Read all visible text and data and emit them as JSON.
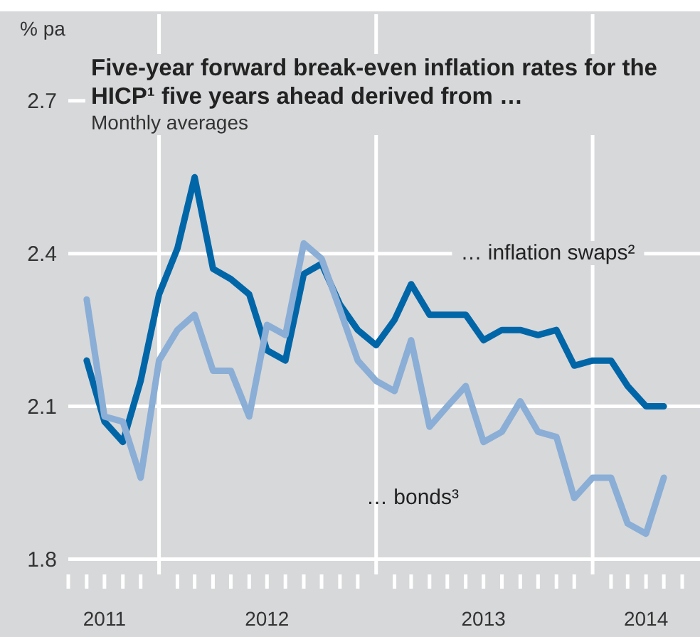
{
  "chart_data": {
    "type": "line",
    "title": "Five-year forward break-even inflation rates for the HICP¹ five years ahead derived from …",
    "subtitle": "Monthly averages",
    "ylabel": "% pa",
    "x": [
      "2011-09",
      "2011-10",
      "2011-11",
      "2011-12",
      "2012-01",
      "2012-02",
      "2012-03",
      "2012-04",
      "2012-05",
      "2012-06",
      "2012-07",
      "2012-08",
      "2012-09",
      "2012-10",
      "2012-11",
      "2012-12",
      "2013-01",
      "2013-02",
      "2013-03",
      "2013-04",
      "2013-05",
      "2013-06",
      "2013-07",
      "2013-08",
      "2013-09",
      "2013-10",
      "2013-11",
      "2013-12",
      "2014-01",
      "2014-02",
      "2014-03",
      "2014-04",
      "2014-05"
    ],
    "series": [
      {
        "color": "#0066a8",
        "values": [
          2.19,
          2.07,
          2.03,
          2.15,
          2.32,
          2.41,
          2.55,
          2.37,
          2.35,
          2.32,
          2.21,
          2.19,
          2.36,
          2.38,
          2.3,
          2.25,
          2.22,
          2.27,
          2.34,
          2.28,
          2.28,
          2.28,
          2.23,
          2.25,
          2.25,
          2.24,
          2.25,
          2.18,
          2.19,
          2.19,
          2.14,
          2.1,
          2.1
        ]
      },
      {
        "color": "#8aaed6",
        "values": [
          2.31,
          2.08,
          2.07,
          1.96,
          2.19,
          2.25,
          2.28,
          2.17,
          2.17,
          2.08,
          2.26,
          2.24,
          2.42,
          2.39,
          2.29,
          2.19,
          2.15,
          2.13,
          2.23,
          2.06,
          2.1,
          2.14,
          2.03,
          2.05,
          2.11,
          2.05,
          2.04,
          1.92,
          1.96,
          1.96,
          1.87,
          1.85,
          1.96
        ]
      }
    ],
    "ylim": [
      1.77,
      2.87
    ],
    "yticks": [
      1.8,
      2.1,
      2.4,
      2.7
    ],
    "xlim": [
      "2011-08",
      "2014-07"
    ],
    "xticks": [
      {
        "value": "2011-08",
        "label": null
      },
      {
        "value": "2011-09",
        "label": null
      },
      {
        "value": "2011-10",
        "label": "2011"
      },
      {
        "value": "2011-11",
        "label": null
      },
      {
        "value": "2011-12",
        "label": null
      },
      {
        "value": "2012-02",
        "label": null
      },
      {
        "value": "2012-03",
        "label": null
      },
      {
        "value": "2012-04",
        "label": null
      },
      {
        "value": "2012-05",
        "label": null
      },
      {
        "value": "2012-06",
        "label": null
      },
      {
        "value": "2012-07",
        "label": "2012"
      },
      {
        "value": "2012-08",
        "label": null
      },
      {
        "value": "2012-09",
        "label": null
      },
      {
        "value": "2012-10",
        "label": null
      },
      {
        "value": "2012-11",
        "label": null
      },
      {
        "value": "2012-12",
        "label": null
      },
      {
        "value": "2013-02",
        "label": null
      },
      {
        "value": "2013-03",
        "label": null
      },
      {
        "value": "2013-04",
        "label": null
      },
      {
        "value": "2013-05",
        "label": null
      },
      {
        "value": "2013-06",
        "label": null
      },
      {
        "value": "2013-07",
        "label": "2013"
      },
      {
        "value": "2013-08",
        "label": null
      },
      {
        "value": "2013-09",
        "label": null
      },
      {
        "value": "2013-10",
        "label": null
      },
      {
        "value": "2013-11",
        "label": null
      },
      {
        "value": "2013-12",
        "label": null
      },
      {
        "value": "2014-02",
        "label": null
      },
      {
        "value": "2014-03",
        "label": null
      },
      {
        "value": "2014-04",
        "label": "2014"
      },
      {
        "value": "2014-05",
        "label": null
      },
      {
        "value": "2014-06",
        "label": null
      }
    ],
    "ref_lines": [
      {
        "axis": "x",
        "value": "2012-01",
        "color": "#ffffff"
      },
      {
        "axis": "x",
        "value": "2013-01",
        "color": "#ffffff"
      },
      {
        "axis": "x",
        "value": "2014-01",
        "color": "#ffffff"
      }
    ],
    "grid": "y",
    "annotations": [
      "… inflation swaps²",
      "… bonds³"
    ]
  }
}
